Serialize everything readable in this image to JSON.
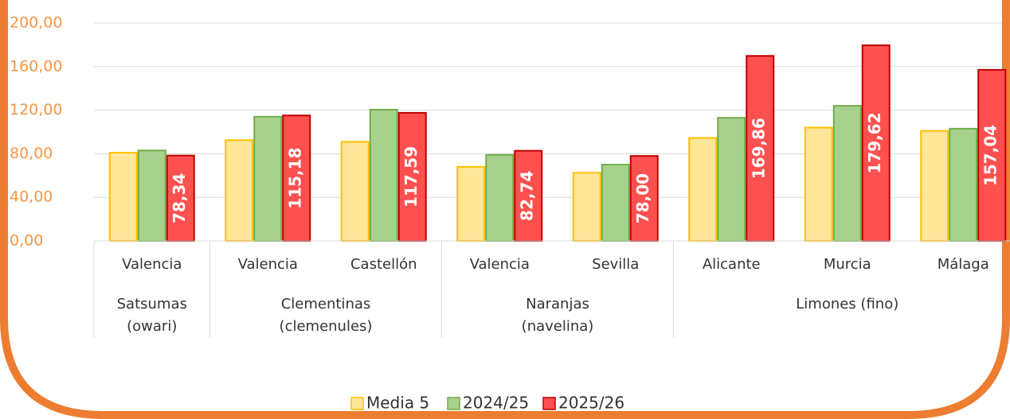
{
  "chart_data": {
    "type": "bar",
    "categories": [
      "Valencia",
      "Valencia",
      "Castellón",
      "Valencia",
      "Sevilla",
      "Alicante",
      "Murcia",
      "Málaga"
    ],
    "groups": [
      {
        "label": [
          "Satsumas",
          "(owari)"
        ],
        "span": 1
      },
      {
        "label": [
          "Clementinas",
          "(clemenules)"
        ],
        "span": 2
      },
      {
        "label": [
          "Naranjas",
          "(navelina)"
        ],
        "span": 2
      },
      {
        "label": [
          "Limones (fino)"
        ],
        "span": 3
      }
    ],
    "series": [
      {
        "name": "Media 5",
        "color": "#ffe699",
        "stroke": "#ffc000",
        "values": [
          81,
          92.5,
          91,
          68,
          62.5,
          94.5,
          104,
          101
        ]
      },
      {
        "name": "2024/25",
        "color": "#a9d18e",
        "stroke": "#70ad47",
        "values": [
          83,
          114,
          120.5,
          79,
          70,
          113,
          124,
          103
        ]
      },
      {
        "name": "2025/26",
        "color": "#ff5050",
        "stroke": "#c00000",
        "values": [
          78.34,
          115.18,
          117.59,
          82.74,
          78.0,
          169.86,
          179.62,
          157.04
        ],
        "value_labels": [
          "78,34",
          "115,18",
          "117,59",
          "82,74",
          "78,00",
          "169,86",
          "179,62",
          "157,04"
        ]
      }
    ],
    "ylim": [
      0,
      200
    ],
    "yticks": [
      {
        "value": 0,
        "label": "0,00"
      },
      {
        "value": 40,
        "label": "40,00"
      },
      {
        "value": 80,
        "label": "80,00"
      },
      {
        "value": 120,
        "label": "120,00"
      },
      {
        "value": 160,
        "label": "160,00"
      },
      {
        "value": 200,
        "label": "200,00"
      }
    ],
    "grid": true,
    "legend": "bottom"
  }
}
